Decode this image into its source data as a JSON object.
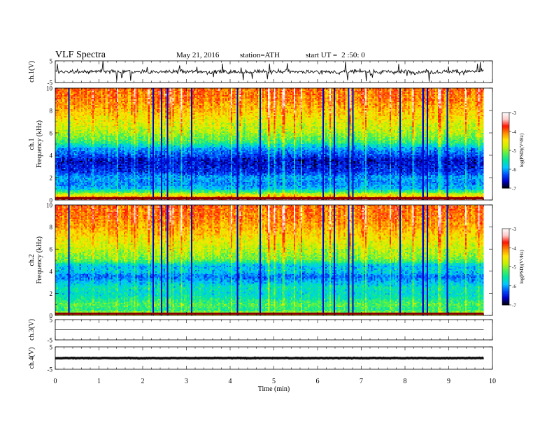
{
  "header": {
    "title": "VLF Spectra",
    "date": "May 21, 2016",
    "station": "station=ATH",
    "start_label": "start UT =",
    "start_value": "2 :50: 0"
  },
  "colors": {
    "trace": "#111111",
    "colormap": [
      "#000000",
      "#0000c8",
      "#0050ff",
      "#00c8ff",
      "#00e6a0",
      "#50f050",
      "#c8f000",
      "#ffe600",
      "#ff8c00",
      "#ff1400",
      "#ffc8c8",
      "#ffffff"
    ]
  },
  "chart_data": [
    {
      "id": "ch1-waveform",
      "type": "line",
      "ylabel": "ch.1(V)",
      "ylim": [
        -5,
        5
      ],
      "y_ticks": [
        "5",
        "-5"
      ],
      "xlim": [
        0,
        10
      ],
      "description_values": {
        "baseline_v": 0.0,
        "noise_amplitude_v": 1.2,
        "data_end_min": 9.8
      }
    },
    {
      "id": "ch1-spectrogram",
      "type": "heatmap",
      "ylabel": "ch.1\nFrequency (kHz)",
      "ylabel_top": "ch.1",
      "ylabel_bottom": "Frequency (kHz)",
      "ylim": [
        0,
        10
      ],
      "y_ticks": [
        "0",
        "2",
        "4",
        "6",
        "8",
        "10"
      ],
      "xlim": [
        0,
        10
      ],
      "data_end_min": 9.8,
      "colorbar": {
        "label": "log(PSD)(V²/Hz)",
        "range": [
          -7,
          -3
        ],
        "ticks": [
          "-3",
          "-4",
          "-5",
          "-6",
          "-7"
        ]
      },
      "band_profile": [
        {
          "f": 0.0,
          "v": -3.4
        },
        {
          "f": 0.3,
          "v": -4.2
        },
        {
          "f": 0.6,
          "v": -5.0
        },
        {
          "f": 1.0,
          "v": -5.9
        },
        {
          "f": 1.5,
          "v": -6.1
        },
        {
          "f": 2.0,
          "v": -6.0
        },
        {
          "f": 2.5,
          "v": -6.4
        },
        {
          "f": 3.0,
          "v": -6.5
        },
        {
          "f": 3.5,
          "v": -6.6
        },
        {
          "f": 4.0,
          "v": -6.3
        },
        {
          "f": 4.6,
          "v": -6.0
        },
        {
          "f": 5.2,
          "v": -5.3
        },
        {
          "f": 6.0,
          "v": -4.9
        },
        {
          "f": 7.0,
          "v": -4.6
        },
        {
          "f": 8.0,
          "v": -4.3
        },
        {
          "f": 9.0,
          "v": -4.05
        },
        {
          "f": 10.0,
          "v": -3.95
        }
      ]
    },
    {
      "id": "ch2-spectrogram",
      "type": "heatmap",
      "ylabel": "ch.2\nFrequency (kHz)",
      "ylabel_top": "ch.2",
      "ylabel_bottom": "Frequency (kHz)",
      "ylim": [
        0,
        10
      ],
      "y_ticks": [
        "0",
        "2",
        "4",
        "6",
        "8",
        "10"
      ],
      "xlim": [
        0,
        10
      ],
      "data_end_min": 9.8,
      "colorbar": {
        "label": "log(PSD)(V²/Hz)",
        "range": [
          -7,
          -3
        ],
        "ticks": [
          "-3",
          "-4",
          "-5",
          "-6",
          "-7"
        ]
      },
      "band_profile": [
        {
          "f": 0.0,
          "v": -4.6
        },
        {
          "f": 0.5,
          "v": -5.4
        },
        {
          "f": 1.0,
          "v": -5.2
        },
        {
          "f": 1.5,
          "v": -5.5
        },
        {
          "f": 2.0,
          "v": -5.7
        },
        {
          "f": 2.5,
          "v": -5.6
        },
        {
          "f": 3.0,
          "v": -5.9
        },
        {
          "f": 3.5,
          "v": -6.2
        },
        {
          "f": 4.0,
          "v": -5.8
        },
        {
          "f": 4.5,
          "v": -5.9
        },
        {
          "f": 5.0,
          "v": -5.1
        },
        {
          "f": 6.0,
          "v": -4.8
        },
        {
          "f": 7.0,
          "v": -4.5
        },
        {
          "f": 8.0,
          "v": -4.2
        },
        {
          "f": 9.0,
          "v": -4.0
        },
        {
          "f": 10.0,
          "v": -3.95
        }
      ]
    },
    {
      "id": "ch3-waveform",
      "type": "line",
      "ylabel": "ch.3(V)",
      "ylim": [
        -5,
        5
      ],
      "y_ticks": [
        "5",
        "-5"
      ],
      "xlim": [
        0,
        10
      ],
      "description_values": {
        "baseline_v": 0.0,
        "noise_amplitude_v": 0.02,
        "data_end_min": 9.8
      }
    },
    {
      "id": "ch4-waveform",
      "type": "line",
      "ylabel": "ch.4(V)",
      "ylim": [
        -5,
        5
      ],
      "y_ticks": [
        "5",
        "-5"
      ],
      "xlim": [
        0,
        10
      ],
      "description_values": {
        "baseline_v": 0.0,
        "noise_amplitude_v": 0.15,
        "data_end_min": 9.8
      }
    }
  ],
  "x_axis": {
    "label": "Time (min)",
    "ticks": [
      "0",
      "1",
      "2",
      "3",
      "4",
      "5",
      "6",
      "7",
      "8",
      "9",
      "10"
    ],
    "range": [
      0,
      10
    ]
  }
}
